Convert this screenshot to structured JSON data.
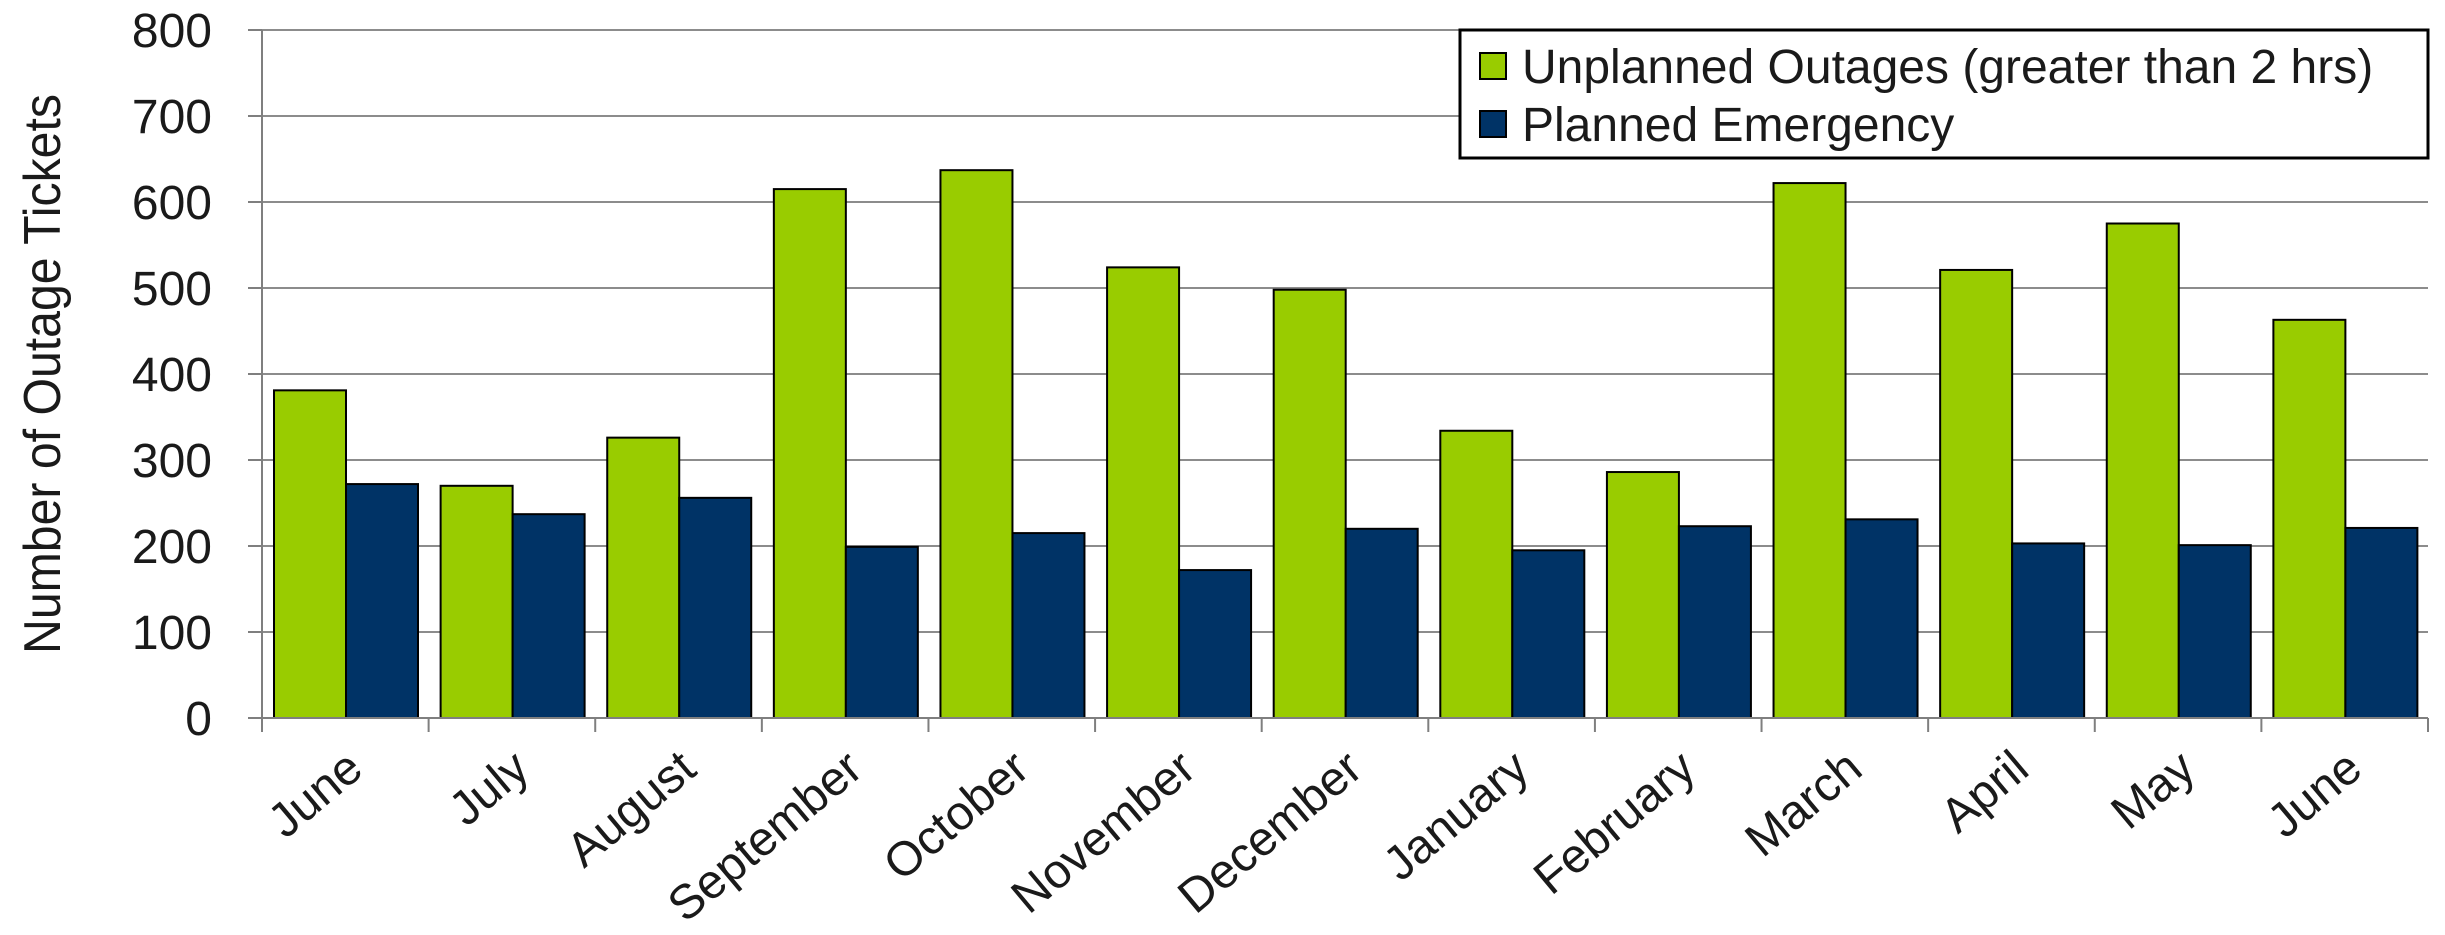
{
  "chart_data": {
    "type": "bar",
    "title": "",
    "xlabel": "",
    "ylabel": "Number of Outage Tickets",
    "ylim": [
      0,
      800
    ],
    "yticks": [
      0,
      100,
      200,
      300,
      400,
      500,
      600,
      700,
      800
    ],
    "grid": true,
    "legend_position": "top-right",
    "categories": [
      "June",
      "July",
      "August",
      "September",
      "October",
      "November",
      "December",
      "January",
      "February",
      "March",
      "April",
      "May",
      "June"
    ],
    "series": [
      {
        "name": "Unplanned Outages (greater than 2 hrs)",
        "color": "#99CC00",
        "values": [
          381,
          270,
          326,
          615,
          637,
          524,
          498,
          334,
          286,
          622,
          521,
          575,
          463
        ]
      },
      {
        "name": "Planned Emergency",
        "color": "#003366",
        "values": [
          272,
          237,
          256,
          199,
          215,
          172,
          220,
          195,
          223,
          231,
          203,
          201,
          221
        ]
      }
    ]
  }
}
